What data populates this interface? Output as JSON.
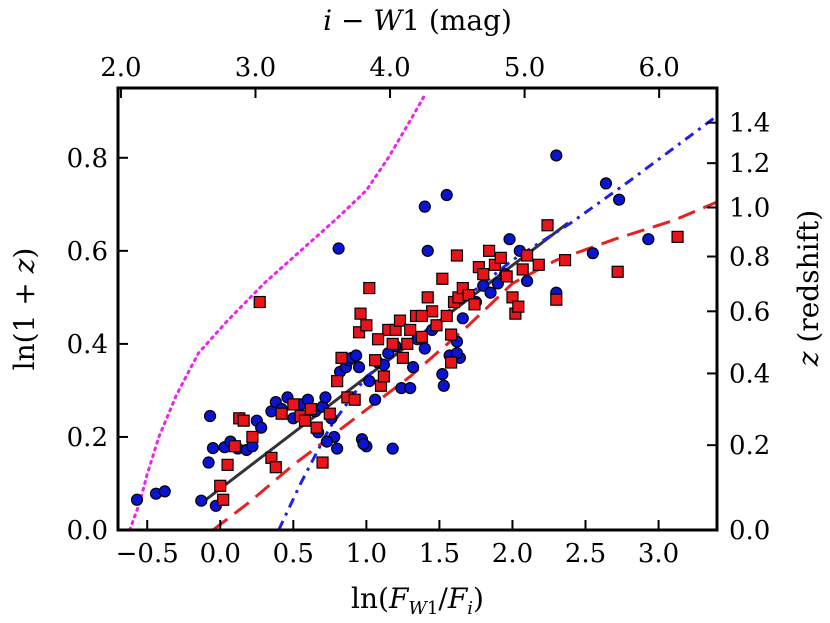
{
  "chart_data": {
    "type": "scatter",
    "xlabel": "ln(F_W1/F_i)",
    "top_xlabel": "i − W1 (mag)",
    "ylabel": "ln(1 + z)",
    "right_ylabel": "z (redshift)",
    "xlim": [
      -0.7,
      3.4
    ],
    "ylim": [
      0.0,
      0.95
    ],
    "x_ticks": [
      -0.5,
      0.0,
      0.5,
      1.0,
      1.5,
      2.0,
      2.5,
      3.0
    ],
    "x_tick_labels": [
      "−0.5",
      "0.0",
      "0.5",
      "1.0",
      "1.5",
      "2.0",
      "2.5",
      "3.0"
    ],
    "y_ticks": [
      0.0,
      0.2,
      0.4,
      0.6,
      0.8
    ],
    "y_tick_labels": [
      "0.0",
      "0.2",
      "0.4",
      "0.6",
      "0.8"
    ],
    "top_ticks": [
      2.0,
      3.0,
      4.0,
      5.0,
      6.0
    ],
    "top_tick_labels": [
      "2.0",
      "3.0",
      "4.0",
      "5.0",
      "6.0"
    ],
    "right_ticks": [
      0.0,
      0.2,
      0.4,
      0.6,
      0.8,
      1.0,
      1.2,
      1.4
    ],
    "right_tick_labels": [
      "0.0",
      "0.2",
      "0.4",
      "0.6",
      "0.8",
      "1.0",
      "1.2",
      "1.4"
    ],
    "grid": false,
    "series": [
      {
        "marker": "circle",
        "color": "#0a14d0",
        "points": [
          [
            -0.57,
            0.065
          ],
          [
            -0.44,
            0.078
          ],
          [
            -0.38,
            0.083
          ],
          [
            -0.13,
            0.063
          ],
          [
            -0.03,
            0.052
          ],
          [
            -0.07,
            0.245
          ],
          [
            -0.05,
            0.176
          ],
          [
            -0.08,
            0.145
          ],
          [
            0.03,
            0.178
          ],
          [
            0.07,
            0.19
          ],
          [
            0.12,
            0.175
          ],
          [
            0.14,
            0.24
          ],
          [
            0.18,
            0.172
          ],
          [
            0.22,
            0.18
          ],
          [
            0.25,
            0.235
          ],
          [
            0.28,
            0.22
          ],
          [
            0.35,
            0.255
          ],
          [
            0.38,
            0.275
          ],
          [
            0.42,
            0.26
          ],
          [
            0.46,
            0.285
          ],
          [
            0.5,
            0.24
          ],
          [
            0.55,
            0.27
          ],
          [
            0.6,
            0.28
          ],
          [
            0.65,
            0.255
          ],
          [
            0.67,
            0.21
          ],
          [
            0.7,
            0.265
          ],
          [
            0.72,
            0.285
          ],
          [
            0.76,
            0.24
          ],
          [
            0.78,
            0.2
          ],
          [
            0.8,
            0.175
          ],
          [
            0.82,
            0.34
          ],
          [
            0.86,
            0.35
          ],
          [
            0.88,
            0.365
          ],
          [
            0.9,
            0.37
          ],
          [
            0.93,
            0.375
          ],
          [
            0.95,
            0.35
          ],
          [
            0.97,
            0.195
          ],
          [
            1.0,
            0.18
          ],
          [
            1.02,
            0.32
          ],
          [
            1.06,
            0.28
          ],
          [
            1.08,
            0.36
          ],
          [
            1.12,
            0.355
          ],
          [
            1.15,
            0.38
          ],
          [
            1.18,
            0.175
          ],
          [
            1.2,
            0.395
          ],
          [
            1.24,
            0.305
          ],
          [
            1.3,
            0.305
          ],
          [
            1.35,
            0.41
          ],
          [
            1.4,
            0.39
          ],
          [
            1.45,
            0.43
          ],
          [
            1.52,
            0.335
          ],
          [
            1.53,
            0.31
          ],
          [
            1.57,
            0.375
          ],
          [
            1.62,
            0.405
          ],
          [
            1.64,
            0.37
          ],
          [
            1.66,
            0.455
          ],
          [
            1.75,
            0.49
          ],
          [
            1.8,
            0.525
          ],
          [
            1.85,
            0.51
          ],
          [
            1.9,
            0.53
          ],
          [
            1.95,
            0.55
          ],
          [
            2.05,
            0.6
          ],
          [
            2.1,
            0.535
          ],
          [
            2.3,
            0.51
          ],
          [
            2.55,
            0.595
          ],
          [
            2.64,
            0.745
          ],
          [
            2.73,
            0.71
          ],
          [
            2.93,
            0.625
          ],
          [
            2.3,
            0.805
          ],
          [
            1.55,
            0.72
          ],
          [
            1.4,
            0.695
          ],
          [
            1.42,
            0.6
          ],
          [
            0.81,
            0.605
          ],
          [
            1.98,
            0.625
          ],
          [
            1.62,
            0.38
          ],
          [
            0.73,
            0.19
          ],
          [
            0.98,
            0.185
          ],
          [
            1.32,
            0.35
          ]
        ]
      },
      {
        "marker": "square",
        "color": "#e8141a",
        "points": [
          [
            0.0,
            0.095
          ],
          [
            0.02,
            0.065
          ],
          [
            0.05,
            0.14
          ],
          [
            0.1,
            0.18
          ],
          [
            0.13,
            0.24
          ],
          [
            0.16,
            0.235
          ],
          [
            0.22,
            0.2
          ],
          [
            0.27,
            0.49
          ],
          [
            0.35,
            0.155
          ],
          [
            0.38,
            0.135
          ],
          [
            0.42,
            0.25
          ],
          [
            0.5,
            0.27
          ],
          [
            0.55,
            0.245
          ],
          [
            0.58,
            0.235
          ],
          [
            0.62,
            0.26
          ],
          [
            0.66,
            0.22
          ],
          [
            0.7,
            0.145
          ],
          [
            0.75,
            0.25
          ],
          [
            0.8,
            0.32
          ],
          [
            0.83,
            0.37
          ],
          [
            0.87,
            0.285
          ],
          [
            0.92,
            0.28
          ],
          [
            0.95,
            0.425
          ],
          [
            1.0,
            0.44
          ],
          [
            1.02,
            0.52
          ],
          [
            1.06,
            0.365
          ],
          [
            1.1,
            0.31
          ],
          [
            1.12,
            0.33
          ],
          [
            1.15,
            0.43
          ],
          [
            1.18,
            0.4
          ],
          [
            1.2,
            0.43
          ],
          [
            1.23,
            0.45
          ],
          [
            1.25,
            0.37
          ],
          [
            1.28,
            0.4
          ],
          [
            1.3,
            0.43
          ],
          [
            1.34,
            0.46
          ],
          [
            1.38,
            0.415
          ],
          [
            1.42,
            0.5
          ],
          [
            1.45,
            0.47
          ],
          [
            1.48,
            0.44
          ],
          [
            1.52,
            0.54
          ],
          [
            1.55,
            0.46
          ],
          [
            1.58,
            0.42
          ],
          [
            1.6,
            0.49
          ],
          [
            1.63,
            0.5
          ],
          [
            1.66,
            0.52
          ],
          [
            1.7,
            0.505
          ],
          [
            1.74,
            0.485
          ],
          [
            1.77,
            0.565
          ],
          [
            1.8,
            0.55
          ],
          [
            1.84,
            0.6
          ],
          [
            1.88,
            0.57
          ],
          [
            1.92,
            0.585
          ],
          [
            1.96,
            0.545
          ],
          [
            2.0,
            0.5
          ],
          [
            2.02,
            0.465
          ],
          [
            2.04,
            0.48
          ],
          [
            2.07,
            0.56
          ],
          [
            2.1,
            0.59
          ],
          [
            2.18,
            0.57
          ],
          [
            2.24,
            0.655
          ],
          [
            2.3,
            0.495
          ],
          [
            2.36,
            0.58
          ],
          [
            2.72,
            0.555
          ],
          [
            3.13,
            0.63
          ],
          [
            1.62,
            0.59
          ],
          [
            1.58,
            0.36
          ],
          [
            1.38,
            0.46
          ],
          [
            0.96,
            0.465
          ],
          [
            1.08,
            0.41
          ]
        ]
      }
    ],
    "lines": [
      {
        "style": "solid",
        "color": "#333333",
        "points": [
          [
            -0.1,
            0.065
          ],
          [
            2.38,
            0.66
          ]
        ]
      },
      {
        "style": "dashed",
        "color": "#e82020",
        "points": [
          [
            -0.05,
            0.0
          ],
          [
            0.2,
            0.06
          ],
          [
            0.5,
            0.14
          ],
          [
            0.9,
            0.235
          ],
          [
            1.3,
            0.33
          ],
          [
            1.7,
            0.44
          ],
          [
            2.0,
            0.53
          ],
          [
            2.3,
            0.58
          ],
          [
            2.7,
            0.625
          ],
          [
            3.1,
            0.665
          ],
          [
            3.4,
            0.705
          ]
        ]
      },
      {
        "style": "dashdot",
        "color": "#2020e8",
        "points": [
          [
            0.4,
            0.0
          ],
          [
            0.55,
            0.1
          ],
          [
            0.75,
            0.22
          ],
          [
            1.0,
            0.33
          ],
          [
            1.3,
            0.4
          ],
          [
            1.6,
            0.48
          ],
          [
            2.0,
            0.58
          ],
          [
            2.4,
            0.66
          ],
          [
            2.8,
            0.75
          ],
          [
            3.1,
            0.82
          ],
          [
            3.4,
            0.89
          ]
        ]
      },
      {
        "style": "dotted",
        "color": "#f020f0",
        "points": [
          [
            -0.62,
            0.0
          ],
          [
            -0.55,
            0.06
          ],
          [
            -0.5,
            0.12
          ],
          [
            -0.42,
            0.2
          ],
          [
            -0.3,
            0.29
          ],
          [
            -0.15,
            0.38
          ],
          [
            0.05,
            0.45
          ],
          [
            0.3,
            0.53
          ],
          [
            0.55,
            0.6
          ],
          [
            0.8,
            0.67
          ],
          [
            1.0,
            0.73
          ],
          [
            1.15,
            0.8
          ],
          [
            1.3,
            0.88
          ],
          [
            1.4,
            0.935
          ]
        ]
      }
    ]
  }
}
